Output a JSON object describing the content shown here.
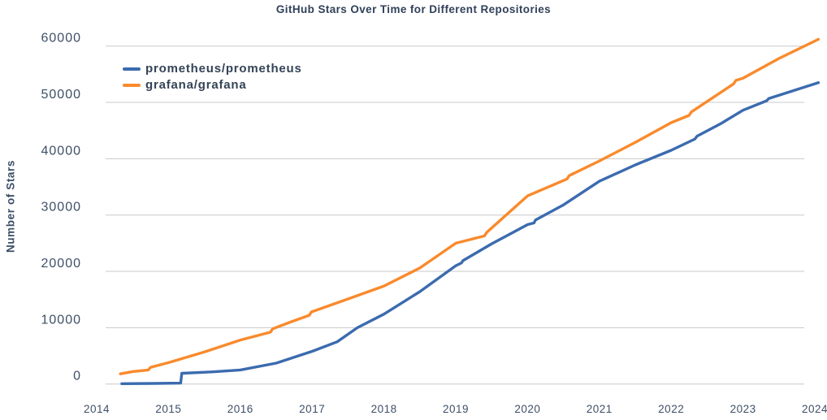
{
  "title": "GitHub Stars Over Time for Different Repositories",
  "colors": {
    "background": "#ffffff",
    "title_text": "#31415a",
    "tick_text": "#3e4f67",
    "gridline": "#c8c8c8",
    "prometheus_line": "#3b6baf",
    "grafana_line": "#f98a2c"
  },
  "chart_data": {
    "type": "line",
    "title": "GitHub Stars Over Time for Different Repositories",
    "xlabel": "",
    "ylabel": "Number of Stars",
    "x_ticks": [
      "2014",
      "2015",
      "2016",
      "2017",
      "2018",
      "2019",
      "2020",
      "2021",
      "2022",
      "2023",
      "2024"
    ],
    "y_ticks": [
      0,
      10000,
      20000,
      30000,
      40000,
      50000,
      60000
    ],
    "xlim": [
      2014,
      2024.1
    ],
    "ylim": [
      0,
      60000
    ],
    "grid": "horizontal-only",
    "legend": {
      "position": "upper-left",
      "entries": [
        "prometheus/prometheus",
        "grafana/grafana"
      ]
    },
    "series": [
      {
        "name": "prometheus/prometheus",
        "color": "#3b6baf",
        "points": [
          [
            2014.35,
            60
          ],
          [
            2014.8,
            100
          ],
          [
            2015.17,
            160
          ],
          [
            2015.185,
            1900
          ],
          [
            2015.6,
            2150
          ],
          [
            2016.0,
            2500
          ],
          [
            2016.5,
            3700
          ],
          [
            2017.0,
            5800
          ],
          [
            2017.35,
            7500
          ],
          [
            2017.63,
            10000
          ],
          [
            2018.0,
            12400
          ],
          [
            2018.5,
            16400
          ],
          [
            2019.0,
            21000
          ],
          [
            2019.08,
            21500
          ],
          [
            2019.1,
            21900
          ],
          [
            2019.5,
            24900
          ],
          [
            2020.0,
            28300
          ],
          [
            2020.09,
            28600
          ],
          [
            2020.11,
            29100
          ],
          [
            2020.5,
            31800
          ],
          [
            2021.0,
            36000
          ],
          [
            2021.5,
            38900
          ],
          [
            2022.0,
            41500
          ],
          [
            2022.33,
            43500
          ],
          [
            2022.36,
            44000
          ],
          [
            2022.7,
            46300
          ],
          [
            2023.0,
            48600
          ],
          [
            2023.33,
            50300
          ],
          [
            2023.36,
            50700
          ],
          [
            2024.05,
            53500
          ]
        ]
      },
      {
        "name": "grafana/grafana",
        "color": "#f98a2c",
        "points": [
          [
            2014.33,
            1800
          ],
          [
            2014.5,
            2200
          ],
          [
            2014.72,
            2500
          ],
          [
            2014.75,
            2950
          ],
          [
            2015.0,
            3800
          ],
          [
            2015.5,
            5700
          ],
          [
            2016.0,
            7800
          ],
          [
            2016.42,
            9200
          ],
          [
            2016.45,
            9800
          ],
          [
            2016.7,
            11000
          ],
          [
            2016.96,
            12200
          ],
          [
            2016.99,
            12800
          ],
          [
            2017.5,
            15100
          ],
          [
            2018.0,
            17400
          ],
          [
            2018.5,
            20600
          ],
          [
            2019.0,
            25000
          ],
          [
            2019.4,
            26300
          ],
          [
            2019.43,
            26900
          ],
          [
            2020.0,
            33400
          ],
          [
            2020.55,
            36400
          ],
          [
            2020.58,
            37000
          ],
          [
            2021.0,
            39600
          ],
          [
            2021.5,
            42900
          ],
          [
            2022.0,
            46400
          ],
          [
            2022.25,
            47700
          ],
          [
            2022.28,
            48300
          ],
          [
            2022.87,
            53300
          ],
          [
            2022.9,
            53900
          ],
          [
            2023.0,
            54300
          ],
          [
            2023.5,
            57800
          ],
          [
            2024.05,
            61200
          ]
        ]
      }
    ]
  }
}
